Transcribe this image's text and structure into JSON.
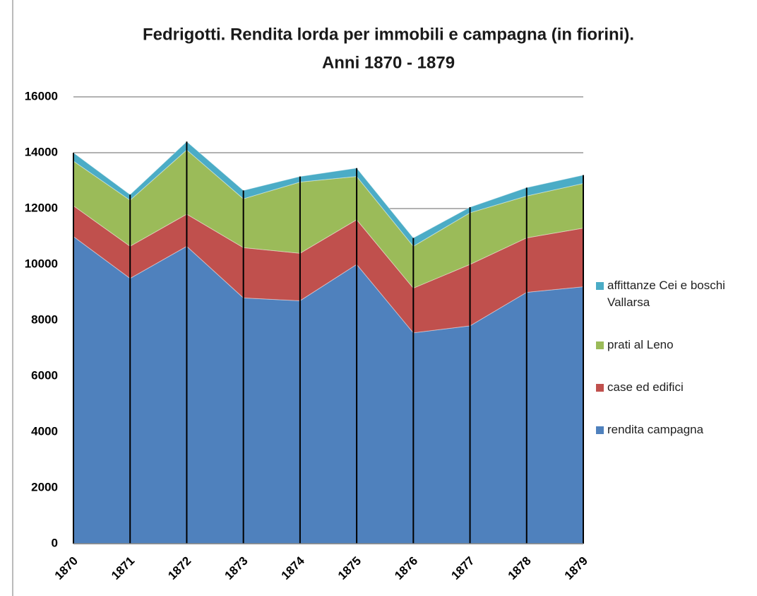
{
  "chart_data": {
    "type": "stacked_area",
    "title": [
      "Fedrigotti. Rendita lorda per immobili e campagna (in fiorini).",
      "Anni 1870 - 1879"
    ],
    "categories": [
      "1870",
      "1871",
      "1872",
      "1873",
      "1874",
      "1875",
      "1876",
      "1877",
      "1878",
      "1879"
    ],
    "series": [
      {
        "name": "rendita campagna",
        "color": "#4f81bd",
        "values": [
          11000,
          9500,
          10650,
          8800,
          8700,
          10000,
          7550,
          7800,
          9000,
          9200
        ]
      },
      {
        "name": "case ed edifici",
        "color": "#c0504d",
        "values": [
          1100,
          1150,
          1150,
          1800,
          1700,
          1600,
          1600,
          2200,
          1950,
          2100
        ]
      },
      {
        "name": "prati al Leno",
        "color": "#9bbb59",
        "values": [
          1600,
          1650,
          2300,
          1750,
          2550,
          1550,
          1500,
          1850,
          1500,
          1600
        ]
      },
      {
        "name": "affittanze Cei e boschi Vallarsa",
        "color": "#4bacc6",
        "values": [
          300,
          200,
          300,
          300,
          200,
          300,
          300,
          200,
          300,
          300
        ]
      }
    ],
    "ylim": [
      0,
      16000
    ],
    "yticks": [
      0,
      2000,
      4000,
      6000,
      8000,
      10000,
      12000,
      14000,
      16000
    ],
    "grid": true
  }
}
